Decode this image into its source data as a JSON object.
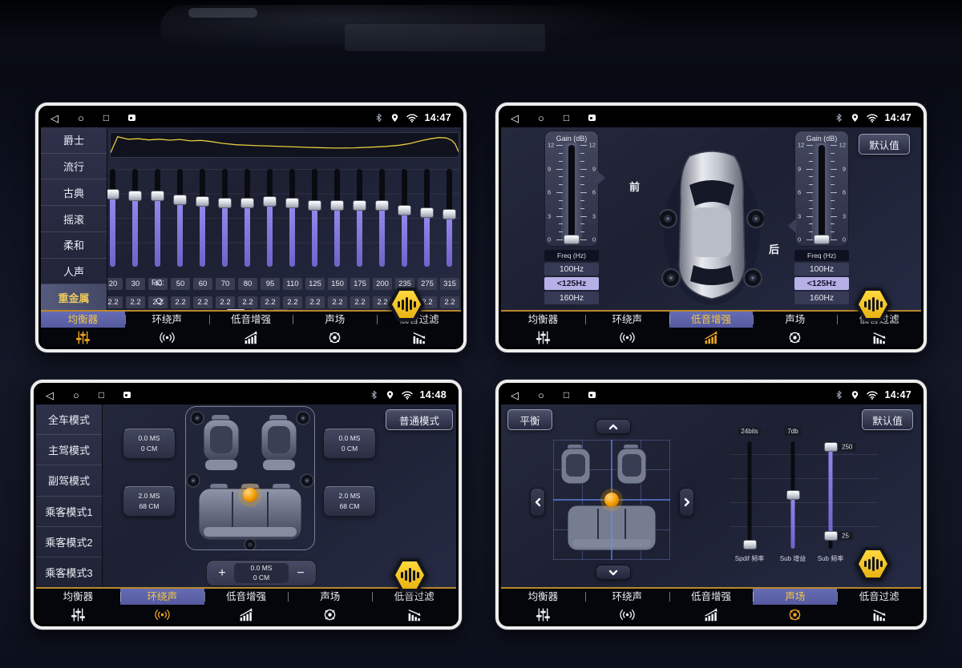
{
  "status_bar": {
    "nav_icons": [
      "back-icon",
      "home-icon",
      "recent-icon",
      "screenshot-icon"
    ],
    "right_icons": [
      "bluetooth-icon",
      "location-icon",
      "wifi-icon"
    ]
  },
  "tabs": [
    {
      "name": "equalizer",
      "label": "均衡器",
      "icon": "equalizer-icon"
    },
    {
      "name": "surround",
      "label": "环绕声",
      "icon": "surround-icon"
    },
    {
      "name": "bass-boost",
      "label": "低音增强",
      "icon": "bass-boost-icon"
    },
    {
      "name": "sound-field",
      "label": "声场",
      "icon": "sound-field-icon"
    },
    {
      "name": "bass-filter",
      "label": "低音过滤",
      "icon": "bass-filter-icon"
    }
  ],
  "colors": {
    "accent_yellow": "#f2c645",
    "active_tab_purple": "#5a5fa8",
    "slider_purple": "#7f73d6",
    "gold_line": "#b9872e",
    "orange_ball": "#f59e00"
  },
  "panels": {
    "equalizer": {
      "time": "14:47",
      "active_tab": "均衡器",
      "presets": [
        "爵士",
        "流行",
        "古典",
        "摇滚",
        "柔和",
        "人声",
        "重金属"
      ],
      "active_preset": "重金属",
      "scale": [
        "+12",
        "6",
        "0",
        "-6",
        "-12"
      ],
      "fc_label": "FC:",
      "q_label": "Q:",
      "bands": [
        {
          "fc": "20",
          "q": "2.2",
          "gain_db": 6.5
        },
        {
          "fc": "30",
          "q": "2.2",
          "gain_db": 6
        },
        {
          "fc": "40",
          "q": "2.2",
          "gain_db": 6
        },
        {
          "fc": "50",
          "q": "2.2",
          "gain_db": 5
        },
        {
          "fc": "60",
          "q": "2.2",
          "gain_db": 4.5
        },
        {
          "fc": "70",
          "q": "2.2",
          "gain_db": 4
        },
        {
          "fc": "80",
          "q": "2.2",
          "gain_db": 4
        },
        {
          "fc": "95",
          "q": "2.2",
          "gain_db": 4.5
        },
        {
          "fc": "110",
          "q": "2.2",
          "gain_db": 4
        },
        {
          "fc": "125",
          "q": "2.2",
          "gain_db": 3.5
        },
        {
          "fc": "150",
          "q": "2.2",
          "gain_db": 3.5
        },
        {
          "fc": "175",
          "q": "2.2",
          "gain_db": 3.5
        },
        {
          "fc": "200",
          "q": "2.2",
          "gain_db": 3.5
        },
        {
          "fc": "235",
          "q": "2.2",
          "gain_db": 2
        },
        {
          "fc": "275",
          "q": "2.2",
          "gain_db": 1.5
        },
        {
          "fc": "315",
          "q": "2.2",
          "gain_db": 1
        }
      ],
      "curve_points": [
        [
          0,
          82
        ],
        [
          2,
          16
        ],
        [
          5,
          26
        ],
        [
          8,
          24
        ],
        [
          11,
          29
        ],
        [
          14,
          26
        ],
        [
          17,
          30
        ],
        [
          20,
          27
        ],
        [
          23,
          33
        ],
        [
          26,
          31
        ],
        [
          29,
          36
        ],
        [
          32,
          43
        ],
        [
          36,
          49
        ],
        [
          41,
          52
        ],
        [
          47,
          55
        ],
        [
          53,
          58
        ],
        [
          59,
          61
        ],
        [
          65,
          63
        ],
        [
          70,
          62
        ],
        [
          75,
          59
        ],
        [
          79,
          56
        ],
        [
          83,
          51
        ],
        [
          86,
          44
        ],
        [
          89,
          33
        ],
        [
          92,
          24
        ],
        [
          94.5,
          19
        ],
        [
          96.5,
          21
        ],
        [
          98,
          30
        ],
        [
          99,
          45
        ],
        [
          100,
          78
        ]
      ]
    },
    "bass_boost": {
      "time": "14:47",
      "active_tab": "低音增强",
      "default_button": "默认值",
      "front_label": "前",
      "rear_label": "后",
      "channels": [
        {
          "name": "front",
          "gain_title": "Gain (dB)",
          "scale": [
            "12",
            "9",
            "6",
            "3",
            "0"
          ],
          "gain_value": 0,
          "freq_title": "Freq (Hz)",
          "freq_options": [
            "100Hz",
            "<125Hz",
            "160Hz"
          ],
          "selected_freq": "<125Hz"
        },
        {
          "name": "rear",
          "gain_title": "Gain (dB)",
          "scale": [
            "12",
            "9",
            "6",
            "3",
            "0"
          ],
          "gain_value": 0,
          "freq_title": "Freq (Hz)",
          "freq_options": [
            "100Hz",
            "<125Hz",
            "160Hz"
          ],
          "selected_freq": "<125Hz"
        }
      ]
    },
    "surround": {
      "time": "14:48",
      "active_tab": "环绕声",
      "modes": [
        "全车模式",
        "主驾模式",
        "副驾模式",
        "乘客模式1",
        "乘客模式2",
        "乘客模式3"
      ],
      "normal_mode_button": "普通模式",
      "delay_buttons": [
        {
          "position": "front-left",
          "ms": "0.0 MS",
          "cm": "0 CM"
        },
        {
          "position": "rear-left",
          "ms": "2.0 MS",
          "cm": "68 CM"
        },
        {
          "position": "front-right",
          "ms": "0.0 MS",
          "cm": "0 CM"
        },
        {
          "position": "rear-right",
          "ms": "2.0 MS",
          "cm": "68 CM"
        }
      ],
      "adjuster": {
        "plus": "+",
        "minus": "−",
        "ms": "0.0 MS",
        "cm": "0 CM"
      }
    },
    "sound_field": {
      "time": "14:47",
      "active_tab": "声场",
      "balance_button": "平衡",
      "default_button": "默认值",
      "sliders": [
        {
          "name": "spdif-freq",
          "top_value": "24bits",
          "label": "Spdif 频率",
          "position_pct": 96,
          "filled": false
        },
        {
          "name": "sub-gain",
          "top_value": "7db",
          "label": "Sub 增益",
          "position_pct": 50,
          "filled": true
        },
        {
          "name": "sub-freq",
          "label": "Sub 频率",
          "range_top_value": "250",
          "range_bottom_value": "25",
          "range_top_pct": 5,
          "range_bottom_pct": 88
        }
      ]
    }
  }
}
